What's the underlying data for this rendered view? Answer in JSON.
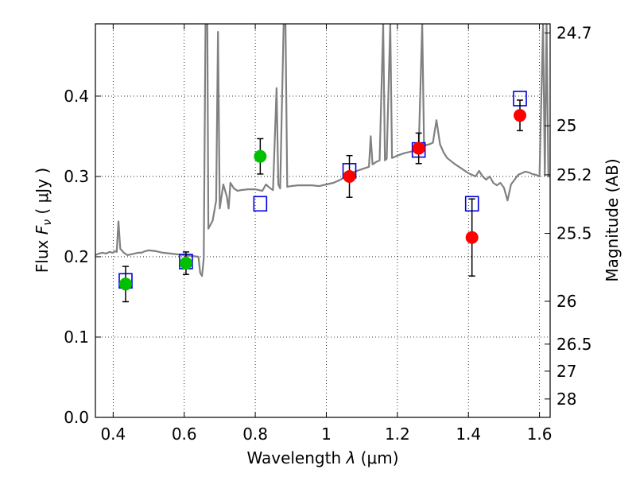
{
  "chart_data": {
    "type": "scatter",
    "xlabel": "Wavelength  λ (μm)",
    "ylabel": "Flux  F_ν  ( μJy )",
    "ylabel_parts": {
      "prefix": "Flux  ",
      "symbol": "F",
      "sub": "ν",
      "suffix": "  ( μJy )"
    },
    "xlabel_parts": {
      "prefix": "Wavelength  ",
      "symbol": "λ",
      "suffix": " (μm)"
    },
    "y2label": "Magnitude (AB)",
    "xlim": [
      0.35,
      1.63
    ],
    "ylim": [
      0.0,
      0.49
    ],
    "grid": true,
    "x_ticks": [
      0.4,
      0.6,
      0.8,
      1.0,
      1.2,
      1.4,
      1.6
    ],
    "x_tick_labels": [
      "0.4",
      "0.6",
      "0.8",
      "1",
      "1.2",
      "1.4",
      "1.6"
    ],
    "y_ticks": [
      0.0,
      0.1,
      0.2,
      0.3,
      0.4
    ],
    "y_tick_labels": [
      "0.0",
      "0.1",
      "0.2",
      "0.3",
      "0.4"
    ],
    "y2_ticks": [
      {
        "label": "24.7",
        "mag": 24.7
      },
      {
        "label": "25",
        "mag": 25.0
      },
      {
        "label": "25.2",
        "mag": 25.2
      },
      {
        "label": "25.5",
        "mag": 25.5
      },
      {
        "label": "26",
        "mag": 26.0
      },
      {
        "label": "26.5",
        "mag": 26.5
      },
      {
        "label": "27",
        "mag": 27.0
      },
      {
        "label": "28",
        "mag": 28.0
      }
    ],
    "colors": {
      "green": "#00c000",
      "red": "#ff0000",
      "square": "#0000dd",
      "model": "#808080",
      "error": "#000000"
    },
    "series": [
      {
        "marker": "circle",
        "color": "#00c000",
        "points": [
          {
            "x": 0.435,
            "y": 0.166,
            "yerr": 0.022
          },
          {
            "x": 0.605,
            "y": 0.192,
            "yerr": 0.014
          },
          {
            "x": 0.814,
            "y": 0.325,
            "yerr": 0.022
          }
        ]
      },
      {
        "marker": "circle",
        "color": "#ff0000",
        "points": [
          {
            "x": 1.065,
            "y": 0.3,
            "yerr": 0.026
          },
          {
            "x": 1.26,
            "y": 0.335,
            "yerr": 0.019
          },
          {
            "x": 1.41,
            "y": 0.224,
            "yerr": 0.048
          },
          {
            "x": 1.545,
            "y": 0.376,
            "yerr": 0.019
          }
        ]
      },
      {
        "marker": "open-square",
        "color": "#0000dd",
        "points": [
          {
            "x": 0.435,
            "y": 0.17
          },
          {
            "x": 0.605,
            "y": 0.194
          },
          {
            "x": 0.814,
            "y": 0.266
          },
          {
            "x": 1.065,
            "y": 0.307
          },
          {
            "x": 1.26,
            "y": 0.333
          },
          {
            "x": 1.41,
            "y": 0.266
          },
          {
            "x": 1.545,
            "y": 0.397
          }
        ]
      },
      {
        "marker": "line",
        "color": "#808080",
        "points": [
          [
            0.35,
            0.202
          ],
          [
            0.36,
            0.204
          ],
          [
            0.37,
            0.205
          ],
          [
            0.38,
            0.204
          ],
          [
            0.39,
            0.206
          ],
          [
            0.4,
            0.205
          ],
          [
            0.405,
            0.207
          ],
          [
            0.41,
            0.206
          ],
          [
            0.415,
            0.244
          ],
          [
            0.42,
            0.21
          ],
          [
            0.43,
            0.205
          ],
          [
            0.44,
            0.202
          ],
          [
            0.45,
            0.203
          ],
          [
            0.46,
            0.204
          ],
          [
            0.47,
            0.205
          ],
          [
            0.48,
            0.205
          ],
          [
            0.49,
            0.207
          ],
          [
            0.5,
            0.208
          ],
          [
            0.52,
            0.207
          ],
          [
            0.54,
            0.205
          ],
          [
            0.56,
            0.204
          ],
          [
            0.58,
            0.203
          ],
          [
            0.6,
            0.202
          ],
          [
            0.62,
            0.201
          ],
          [
            0.64,
            0.2
          ],
          [
            0.645,
            0.18
          ],
          [
            0.65,
            0.176
          ],
          [
            0.655,
            0.198
          ],
          [
            0.66,
            0.49
          ],
          [
            0.665,
            0.49
          ],
          [
            0.668,
            0.235
          ],
          [
            0.68,
            0.245
          ],
          [
            0.69,
            0.27
          ],
          [
            0.695,
            0.48
          ],
          [
            0.7,
            0.26
          ],
          [
            0.71,
            0.29
          ],
          [
            0.72,
            0.275
          ],
          [
            0.725,
            0.26
          ],
          [
            0.73,
            0.292
          ],
          [
            0.74,
            0.285
          ],
          [
            0.75,
            0.282
          ],
          [
            0.76,
            0.283
          ],
          [
            0.78,
            0.284
          ],
          [
            0.8,
            0.284
          ],
          [
            0.82,
            0.282
          ],
          [
            0.83,
            0.29
          ],
          [
            0.84,
            0.286
          ],
          [
            0.85,
            0.283
          ],
          [
            0.86,
            0.41
          ],
          [
            0.865,
            0.29
          ],
          [
            0.87,
            0.285
          ],
          [
            0.88,
            0.49
          ],
          [
            0.885,
            0.49
          ],
          [
            0.89,
            0.287
          ],
          [
            0.9,
            0.288
          ],
          [
            0.92,
            0.289
          ],
          [
            0.94,
            0.289
          ],
          [
            0.96,
            0.289
          ],
          [
            0.98,
            0.288
          ],
          [
            1.0,
            0.29
          ],
          [
            1.02,
            0.292
          ],
          [
            1.04,
            0.296
          ],
          [
            1.06,
            0.302
          ],
          [
            1.08,
            0.306
          ],
          [
            1.1,
            0.309
          ],
          [
            1.12,
            0.312
          ],
          [
            1.125,
            0.35
          ],
          [
            1.13,
            0.315
          ],
          [
            1.14,
            0.318
          ],
          [
            1.15,
            0.32
          ],
          [
            1.16,
            0.49
          ],
          [
            1.165,
            0.32
          ],
          [
            1.17,
            0.322
          ],
          [
            1.18,
            0.49
          ],
          [
            1.185,
            0.323
          ],
          [
            1.2,
            0.326
          ],
          [
            1.22,
            0.329
          ],
          [
            1.24,
            0.331
          ],
          [
            1.25,
            0.333
          ],
          [
            1.26,
            0.335
          ],
          [
            1.27,
            0.49
          ],
          [
            1.275,
            0.337
          ],
          [
            1.28,
            0.339
          ],
          [
            1.29,
            0.34
          ],
          [
            1.3,
            0.342
          ],
          [
            1.31,
            0.37
          ],
          [
            1.32,
            0.34
          ],
          [
            1.33,
            0.33
          ],
          [
            1.34,
            0.323
          ],
          [
            1.36,
            0.316
          ],
          [
            1.38,
            0.31
          ],
          [
            1.4,
            0.304
          ],
          [
            1.42,
            0.3
          ],
          [
            1.43,
            0.307
          ],
          [
            1.44,
            0.3
          ],
          [
            1.45,
            0.296
          ],
          [
            1.46,
            0.3
          ],
          [
            1.47,
            0.292
          ],
          [
            1.48,
            0.289
          ],
          [
            1.49,
            0.292
          ],
          [
            1.5,
            0.286
          ],
          [
            1.51,
            0.27
          ],
          [
            1.52,
            0.29
          ],
          [
            1.53,
            0.296
          ],
          [
            1.54,
            0.302
          ],
          [
            1.55,
            0.304
          ],
          [
            1.56,
            0.306
          ],
          [
            1.57,
            0.305
          ],
          [
            1.58,
            0.303
          ],
          [
            1.59,
            0.302
          ],
          [
            1.6,
            0.3
          ],
          [
            1.61,
            0.49
          ],
          [
            1.615,
            0.301
          ],
          [
            1.62,
            0.49
          ],
          [
            1.625,
            0.3
          ],
          [
            1.63,
            0.3
          ]
        ]
      }
    ]
  }
}
